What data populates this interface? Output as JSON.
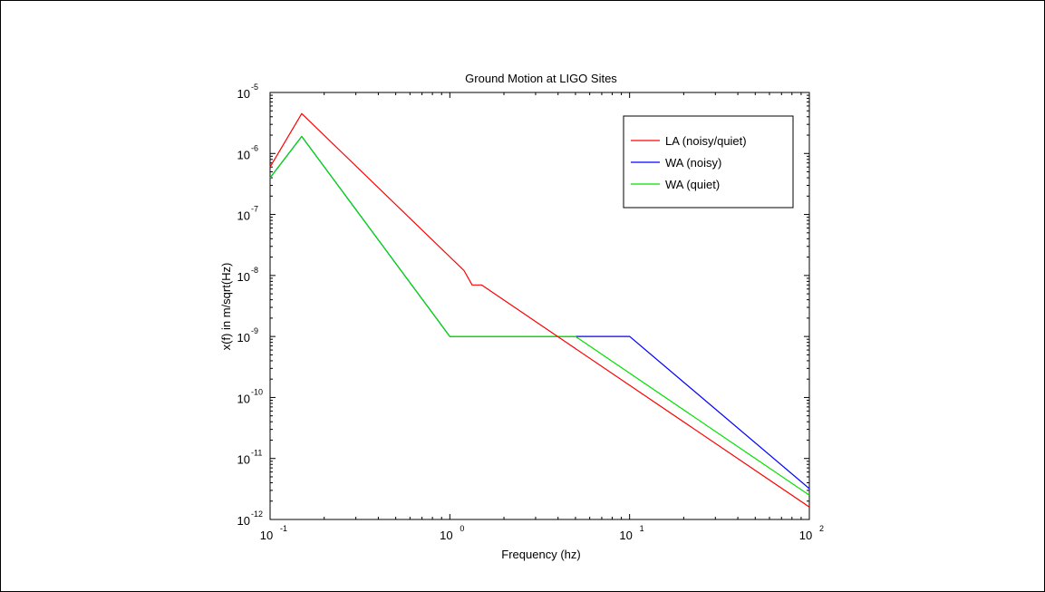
{
  "chart_data": {
    "type": "line",
    "title": "Ground Motion at LIGO Sites",
    "xlabel": "Frequency (hz)",
    "ylabel": "x(f) in m/sqrt(Hz)",
    "xscale": "log",
    "yscale": "log",
    "xlim": [
      0.1,
      100
    ],
    "ylim": [
      1e-12,
      1e-05
    ],
    "x_ticks": [
      {
        "value": 0.1,
        "base": "10",
        "exp": "-1"
      },
      {
        "value": 1,
        "base": "10",
        "exp": "0"
      },
      {
        "value": 10,
        "base": "10",
        "exp": "1"
      },
      {
        "value": 100,
        "base": "10",
        "exp": "2"
      }
    ],
    "y_ticks": [
      {
        "value": 1e-12,
        "base": "10",
        "exp": "-12"
      },
      {
        "value": 1e-11,
        "base": "10",
        "exp": "-11"
      },
      {
        "value": 1e-10,
        "base": "10",
        "exp": "-10"
      },
      {
        "value": 1e-09,
        "base": "10",
        "exp": "-9"
      },
      {
        "value": 1e-08,
        "base": "10",
        "exp": "-8"
      },
      {
        "value": 1e-07,
        "base": "10",
        "exp": "-7"
      },
      {
        "value": 1e-06,
        "base": "10",
        "exp": "-6"
      },
      {
        "value": 1e-05,
        "base": "10",
        "exp": "-5"
      }
    ],
    "grid": false,
    "legend_position": "top-right",
    "series": [
      {
        "name": "LA (noisy/quiet)",
        "color": "#ff0000",
        "points": [
          [
            0.1,
            6e-07
          ],
          [
            0.15,
            4.5e-06
          ],
          [
            1.2,
            1.2e-08
          ],
          [
            1.33,
            7e-09
          ],
          [
            1.5,
            7e-09
          ],
          [
            100,
            1.6e-12
          ]
        ]
      },
      {
        "name": "WA (noisy)",
        "color": "#0000ff",
        "points": [
          [
            0.1,
            4e-07
          ],
          [
            0.15,
            1.9e-06
          ],
          [
            1.0,
            1e-09
          ],
          [
            10,
            1e-09
          ],
          [
            100,
            3.2e-12
          ]
        ]
      },
      {
        "name": "WA (quiet)",
        "color": "#00e000",
        "points": [
          [
            0.1,
            4e-07
          ],
          [
            0.15,
            1.9e-06
          ],
          [
            1.0,
            1e-09
          ],
          [
            5,
            1e-09
          ],
          [
            100,
            2.5e-12
          ]
        ]
      }
    ]
  }
}
